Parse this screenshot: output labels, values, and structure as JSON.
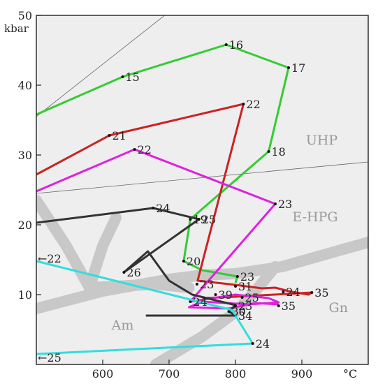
{
  "chart_data": {
    "type": "line",
    "title": "",
    "xlabel": "°C",
    "ylabel": "kbar",
    "xlim": [
      500,
      1000
    ],
    "ylim": [
      0,
      50
    ],
    "grid": false,
    "x_ticks": [
      600,
      700,
      800,
      900
    ],
    "y_ticks": [
      10,
      20,
      30,
      40,
      50
    ],
    "x_tick_labels": [
      "600",
      "700",
      "800",
      "900"
    ],
    "y_tick_labels": [
      "10",
      "20",
      "30",
      "40",
      "50"
    ],
    "facies_labels": [
      {
        "text": "UHP",
        "x": 930,
        "y": 31.5
      },
      {
        "text": "E-HPG",
        "x": 920,
        "y": 20.5
      },
      {
        "text": "Am",
        "x": 630,
        "y": 5.0
      },
      {
        "text": "Gn",
        "x": 955,
        "y": 7.5
      }
    ],
    "series": [
      {
        "color": "#33cc33",
        "points": [
          [
            500,
            35.8
          ],
          [
            630,
            41.2
          ],
          [
            786,
            45.8
          ],
          [
            880,
            42.5
          ],
          [
            850,
            30.5
          ],
          [
            732,
            20.8
          ],
          [
            722,
            14.8
          ],
          [
            750,
            13.5
          ],
          [
            803,
            12.6
          ],
          [
            800,
            11.7
          ]
        ],
        "labels": [
          {
            "text": "15",
            "x": 630,
            "y": 41.2
          },
          {
            "text": "16",
            "x": 786,
            "y": 45.8
          },
          {
            "text": "17",
            "x": 880,
            "y": 42.5
          },
          {
            "text": "18",
            "x": 850,
            "y": 30.5
          },
          {
            "text": "19",
            "x": 732,
            "y": 20.8
          },
          {
            "text": "20",
            "x": 722,
            "y": 14.8
          },
          {
            "text": "23",
            "x": 803,
            "y": 12.6
          }
        ]
      },
      {
        "color": "#cc2222",
        "points": [
          [
            500,
            27.2
          ],
          [
            610,
            32.8
          ],
          [
            812,
            37.3
          ],
          [
            743,
            12.0
          ],
          [
            800,
            11.4
          ],
          [
            840,
            10.9
          ],
          [
            860,
            11.0
          ],
          [
            880,
            10.5
          ],
          [
            910,
            10.0
          ],
          [
            915,
            10.3
          ],
          [
            800,
            9.7
          ],
          [
            750,
            9.5
          ]
        ],
        "labels": [
          {
            "text": "21",
            "x": 610,
            "y": 32.8
          },
          {
            "text": "22",
            "x": 812,
            "y": 37.3
          },
          {
            "text": "24",
            "x": 872,
            "y": 10.4
          },
          {
            "text": "35",
            "x": 915,
            "y": 10.3
          }
        ]
      },
      {
        "color": "#dd22dd",
        "points": [
          [
            500,
            24.8
          ],
          [
            648,
            30.8
          ],
          [
            860,
            23.0
          ],
          [
            732,
            9.0
          ],
          [
            800,
            10.0
          ],
          [
            850,
            9.5
          ],
          [
            865,
            8.9
          ],
          [
            820,
            8.6
          ],
          [
            750,
            9.0
          ],
          [
            730,
            8.2
          ],
          [
            790,
            8.0
          ],
          [
            830,
            8.8
          ],
          [
            865,
            8.6
          ]
        ],
        "labels": [
          {
            "text": "22",
            "x": 648,
            "y": 30.8
          },
          {
            "text": "23",
            "x": 860,
            "y": 23.0
          },
          {
            "text": "24",
            "x": 732,
            "y": 9.0
          },
          {
            "text": "25",
            "x": 810,
            "y": 9.6
          },
          {
            "text": "35",
            "x": 865,
            "y": 8.4
          }
        ]
      },
      {
        "color": "#333333",
        "points": [
          [
            500,
            20.3
          ],
          [
            676,
            22.4
          ],
          [
            745,
            20.8
          ],
          [
            632,
            13.2
          ],
          [
            668,
            16.2
          ],
          [
            700,
            12.0
          ],
          [
            735,
            10.0
          ],
          [
            800,
            8.5
          ],
          [
            790,
            7.6
          ],
          [
            800,
            7.0
          ],
          [
            720,
            7.0
          ],
          [
            665,
            7.0
          ]
        ],
        "labels": [
          {
            "text": "24",
            "x": 676,
            "y": 22.4
          },
          {
            "text": "25",
            "x": 745,
            "y": 20.8
          },
          {
            "text": "26",
            "x": 632,
            "y": 13.2
          },
          {
            "text": "23",
            "x": 742,
            "y": 11.5
          },
          {
            "text": "39",
            "x": 770,
            "y": 10.0
          },
          {
            "text": "31",
            "x": 800,
            "y": 11.2
          },
          {
            "text": "30",
            "x": 790,
            "y": 7.6
          },
          {
            "text": "23",
            "x": 800,
            "y": 8.4
          },
          {
            "text": "34",
            "x": 800,
            "y": 7.0
          }
        ]
      },
      {
        "color": "#33dddd",
        "points": [
          [
            500,
            14.8
          ],
          [
            795,
            7.8
          ],
          [
            800,
            7.0
          ],
          [
            826,
            3.0
          ],
          [
            500,
            1.5
          ]
        ],
        "labels": [
          {
            "text": "24",
            "x": 826,
            "y": 3.0
          }
        ]
      }
    ],
    "offscale_labels": [
      {
        "text": "←22",
        "x": 500,
        "y": 15.2
      },
      {
        "text": "←25",
        "x": 500,
        "y": 1.0
      }
    ]
  }
}
